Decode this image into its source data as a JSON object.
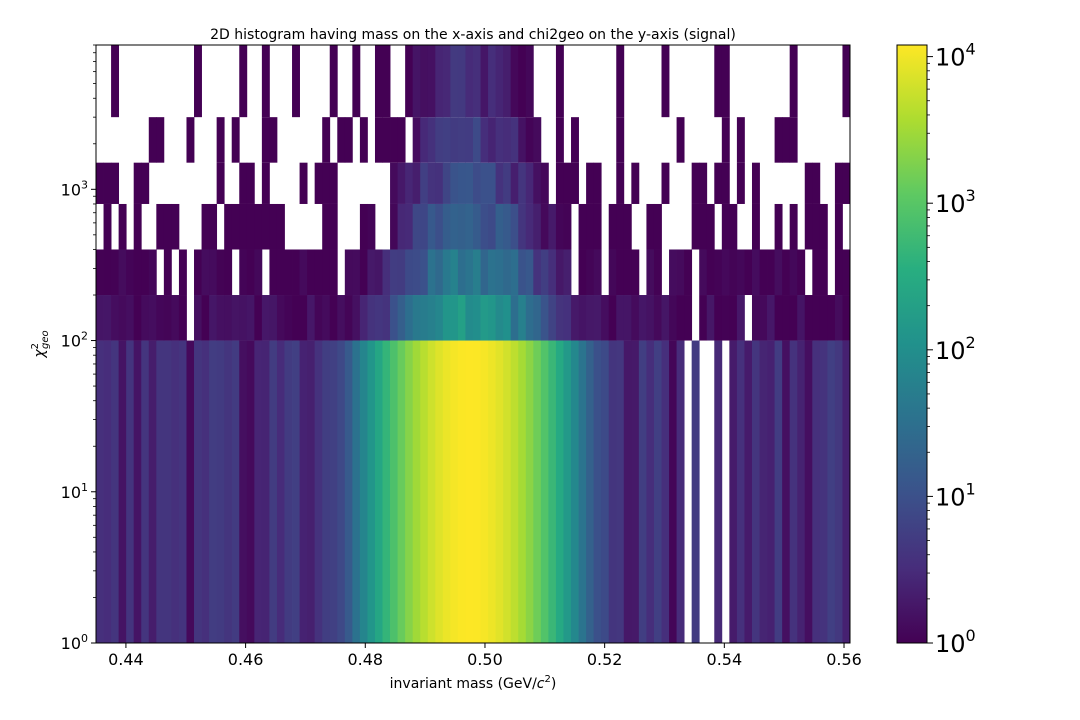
{
  "chart_data": {
    "type": "heatmap",
    "title": "2D histogram having mass on the x-axis and chi2geo on the y-axis (signal)",
    "xlabel": "invariant mass (GeV/c²)",
    "ylabel": "χ²_geo",
    "xlim": [
      0.435,
      0.561
    ],
    "ylim": [
      1,
      9000
    ],
    "yscale": "log",
    "x_ticks": [
      0.44,
      0.46,
      0.48,
      0.5,
      0.52,
      0.54,
      0.56
    ],
    "x_tick_labels": [
      "0.44",
      "0.46",
      "0.48",
      "0.50",
      "0.52",
      "0.54",
      "0.56"
    ],
    "y_ticks": [
      1,
      10,
      100,
      1000
    ],
    "y_tick_labels": [
      {
        "base": "10",
        "exp": "0"
      },
      {
        "base": "10",
        "exp": "1"
      },
      {
        "base": "10",
        "exp": "2"
      },
      {
        "base": "10",
        "exp": "3"
      }
    ],
    "colormap": "viridis",
    "colorscale": "log",
    "color_range": [
      1,
      12000
    ],
    "colorbar_ticks": [
      1,
      10,
      100,
      1000,
      10000
    ],
    "colorbar_tick_labels": [
      {
        "base": "10",
        "exp": "0"
      },
      {
        "base": "10",
        "exp": "1"
      },
      {
        "base": "10",
        "exp": "2"
      },
      {
        "base": "10",
        "exp": "3"
      },
      {
        "base": "10",
        "exp": "4"
      }
    ],
    "peak_mass": 0.4975,
    "peak_count": 12000,
    "mass_resolution": 0.0055,
    "y_bin_edges": [
      1,
      100,
      200,
      400,
      800,
      1500,
      3000,
      9000
    ],
    "grid": false
  }
}
